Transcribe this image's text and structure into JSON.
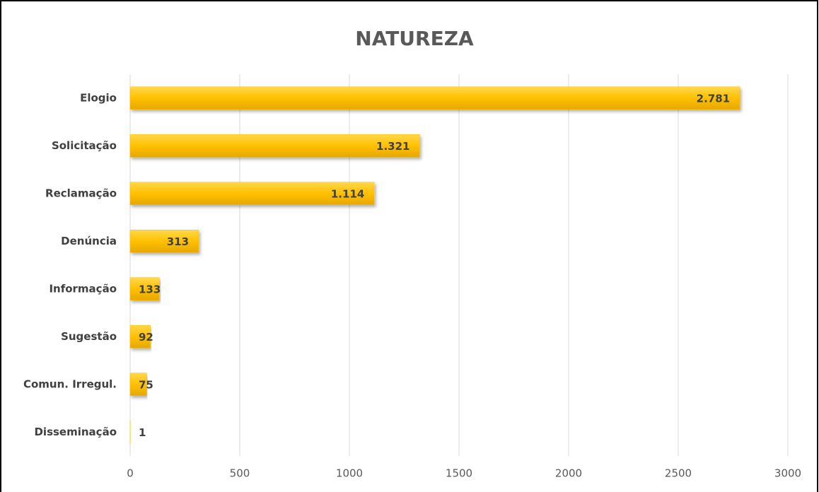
{
  "chart_data": {
    "type": "bar",
    "orientation": "horizontal",
    "title": "NATUREZA",
    "categories": [
      "Elogio",
      "Solicitação",
      "Reclamação",
      "Denúncia",
      "Informação",
      "Sugestão",
      "Comun. Irregul.",
      "Disseminação"
    ],
    "values": [
      2781,
      1321,
      1114,
      313,
      133,
      92,
      75,
      1
    ],
    "value_labels": [
      "2.781",
      "1.321",
      "1.114",
      "313",
      "133",
      "92",
      "75",
      "1"
    ],
    "color": "#ffc000",
    "xlim": [
      0,
      3000
    ],
    "xticks": [
      0,
      500,
      1000,
      1500,
      2000,
      2500,
      3000
    ],
    "grid": true
  }
}
